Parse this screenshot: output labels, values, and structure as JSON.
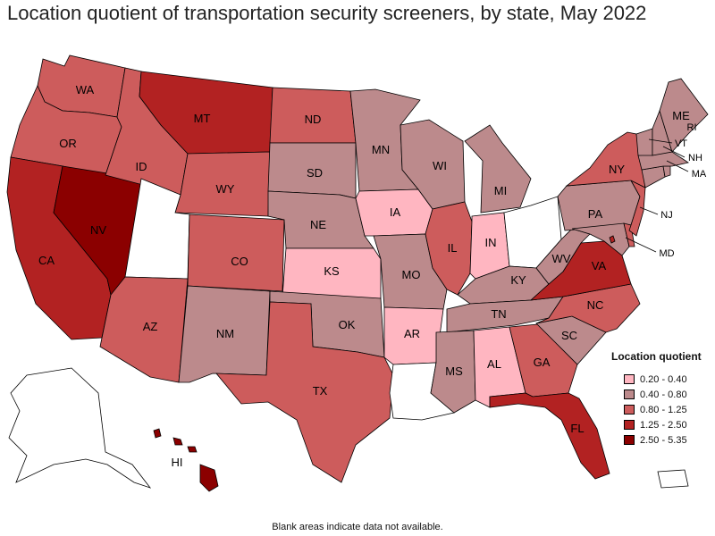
{
  "title": "Location quotient of transportation security screeners, by state, May 2022",
  "footnote": "Blank areas indicate data not available.",
  "legend": {
    "title": "Location quotient",
    "bins": [
      {
        "label": "0.20 - 0.40",
        "color": "#ffb6c1"
      },
      {
        "label": "0.40 - 0.80",
        "color": "#bc8a8c"
      },
      {
        "label": "0.80 - 1.25",
        "color": "#cd5c5c"
      },
      {
        "label": "1.25 - 2.50",
        "color": "#b22222"
      },
      {
        "label": "2.50 - 5.35",
        "color": "#8b0000"
      }
    ]
  },
  "nodata_color": "#ffffff",
  "states": {
    "WA": 2,
    "OR": 2,
    "CA": 3,
    "NV": 4,
    "ID": 2,
    "MT": 3,
    "WY": 2,
    "UT": -1,
    "AZ": 2,
    "CO": 2,
    "NM": 1,
    "ND": 2,
    "SD": 1,
    "NE": 1,
    "KS": 0,
    "OK": 1,
    "TX": 2,
    "MN": 1,
    "IA": 0,
    "MO": 1,
    "AR": 0,
    "LA": -1,
    "WI": 1,
    "IL": 2,
    "MI": 1,
    "IN": 0,
    "OH": -1,
    "KY": 1,
    "TN": 1,
    "MS": 1,
    "AL": 0,
    "GA": 2,
    "FL": 3,
    "SC": 1,
    "NC": 2,
    "VA": 3,
    "WV": 1,
    "MD": 1,
    "DE": 2,
    "NJ": 2,
    "PA": 1,
    "NY": 2,
    "CT": 1,
    "RI": 1,
    "MA": 1,
    "VT": 1,
    "NH": 1,
    "ME": 1,
    "AK": -1,
    "HI": 4,
    "PR": -1,
    "DC": 3
  },
  "labels": {
    "WA": "WA",
    "OR": "OR",
    "CA": "CA",
    "NV": "NV",
    "ID": "ID",
    "MT": "MT",
    "WY": "WY",
    "AZ": "AZ",
    "CO": "CO",
    "NM": "NM",
    "ND": "ND",
    "SD": "SD",
    "NE": "NE",
    "KS": "KS",
    "OK": "OK",
    "TX": "TX",
    "MN": "MN",
    "IA": "IA",
    "MO": "MO",
    "AR": "AR",
    "WI": "WI",
    "IL": "IL",
    "MI": "MI",
    "IN": "IN",
    "KY": "KY",
    "TN": "TN",
    "MS": "MS",
    "AL": "AL",
    "GA": "GA",
    "FL": "FL",
    "SC": "SC",
    "NC": "NC",
    "VA": "VA",
    "WV": "WV",
    "PA": "PA",
    "NY": "NY",
    "ME": "ME",
    "HI": "HI",
    "NJ": "NJ",
    "MD": "MD",
    "VT": "VT",
    "NH": "NH",
    "MA": "MA",
    "RI": "RI"
  }
}
